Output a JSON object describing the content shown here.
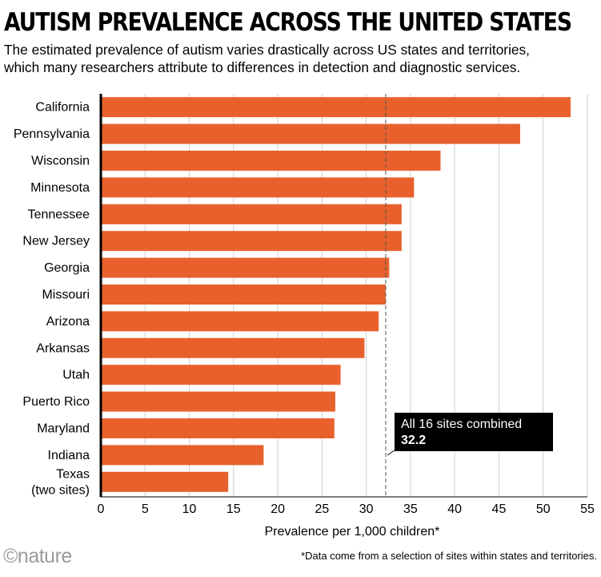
{
  "title": "AUTISM PREVALENCE ACROSS THE UNITED STATES",
  "subtitle_lines": [
    "The estimated prevalence of autism varies drastically across US states and territories,",
    "which many researchers attribute to differences in detection and diagnostic services."
  ],
  "chart_data": {
    "type": "bar",
    "orientation": "horizontal",
    "categories": [
      "California",
      "Pennsylvania",
      "Wisconsin",
      "Minnesota",
      "Tennessee",
      "New Jersey",
      "Georgia",
      "Missouri",
      "Arizona",
      "Arkansas",
      "Utah",
      "Puerto Rico",
      "Maryland",
      "Indiana",
      "Texas (two sites)"
    ],
    "category_label_lines": [
      [
        "California"
      ],
      [
        "Pennsylvania"
      ],
      [
        "Wisconsin"
      ],
      [
        "Minnesota"
      ],
      [
        "Tennessee"
      ],
      [
        "New Jersey"
      ],
      [
        "Georgia"
      ],
      [
        "Missouri"
      ],
      [
        "Arizona"
      ],
      [
        "Arkansas"
      ],
      [
        "Utah"
      ],
      [
        "Puerto Rico"
      ],
      [
        "Maryland"
      ],
      [
        "Indiana"
      ],
      [
        "Texas",
        "(two sites)"
      ]
    ],
    "values": [
      53.1,
      47.4,
      38.4,
      35.4,
      34.0,
      34.0,
      32.6,
      32.2,
      31.4,
      29.8,
      27.1,
      26.5,
      26.4,
      18.4,
      14.4
    ],
    "xlim": [
      0,
      55
    ],
    "xticks": [
      0,
      5,
      10,
      15,
      20,
      25,
      30,
      35,
      40,
      45,
      50,
      55
    ],
    "xlabel": "Prevalence per 1,000 children*",
    "ylabel": "",
    "grid": true,
    "bar_color": "#e8612c",
    "reference_line": {
      "value": 32.2,
      "label": "All 16 sites combined",
      "value_label": "32.2"
    }
  },
  "footnote": "*Data come from a selection of sites within states and territories.",
  "logo": "©nature"
}
